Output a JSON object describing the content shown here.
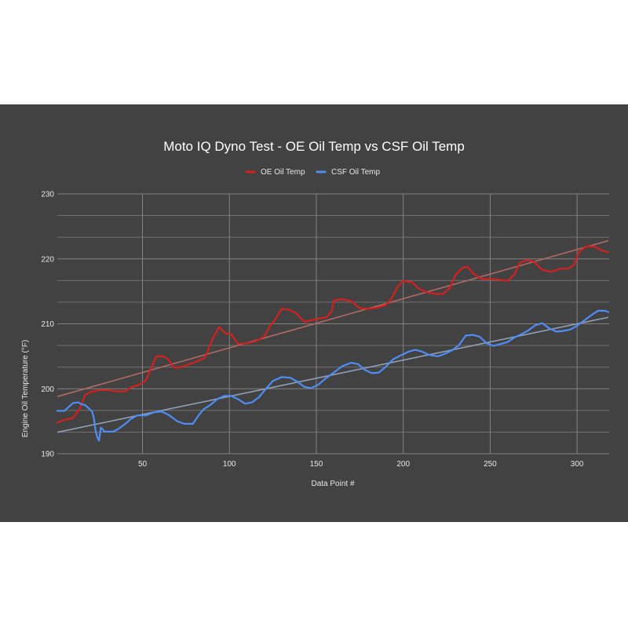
{
  "colors": {
    "panel_background": "#424242",
    "page_background": "#ffffff",
    "oe_series": "#d61f1f",
    "csf_series": "#4e8df5",
    "oe_trendline": "#b06a66",
    "csf_trendline": "#8f9fb8",
    "gridline": "#8a8a8a",
    "text": "#ffffff"
  },
  "chart_data": {
    "type": "line",
    "title": "Moto IQ Dyno Test - OE Oil Temp vs CSF Oil Temp",
    "xlabel": "Data Point #",
    "ylabel": "Engine Oil Temperature (°F)",
    "xlim": [
      1,
      318
    ],
    "ylim": [
      190,
      230
    ],
    "x_ticks": [
      50,
      100,
      150,
      200,
      250,
      300
    ],
    "y_ticks": [
      190,
      200,
      210,
      220,
      230
    ],
    "grid": true,
    "legend_position": "top",
    "series": [
      {
        "name": "OE Oil Temp",
        "color": "#d61f1f",
        "points": [
          [
            1,
            194.8
          ],
          [
            5,
            195.2
          ],
          [
            10,
            195.5
          ],
          [
            14,
            197.0
          ],
          [
            17,
            199.0
          ],
          [
            20,
            199.5
          ],
          [
            25,
            199.8
          ],
          [
            30,
            199.8
          ],
          [
            35,
            199.6
          ],
          [
            40,
            199.6
          ],
          [
            44,
            200.3
          ],
          [
            48,
            200.6
          ],
          [
            52,
            201.3
          ],
          [
            55,
            203.2
          ],
          [
            58,
            205.0
          ],
          [
            62,
            205.0
          ],
          [
            65,
            204.5
          ],
          [
            68,
            203.3
          ],
          [
            72,
            203.3
          ],
          [
            77,
            203.8
          ],
          [
            82,
            204.3
          ],
          [
            86,
            204.8
          ],
          [
            90,
            207.5
          ],
          [
            94,
            209.5
          ],
          [
            98,
            208.5
          ],
          [
            101,
            208.4
          ],
          [
            105,
            206.9
          ],
          [
            110,
            207.0
          ],
          [
            115,
            207.3
          ],
          [
            120,
            208.0
          ],
          [
            123,
            209.5
          ],
          [
            127,
            210.9
          ],
          [
            130,
            212.3
          ],
          [
            134,
            212.2
          ],
          [
            138,
            211.7
          ],
          [
            143,
            210.3
          ],
          [
            148,
            210.6
          ],
          [
            153,
            210.9
          ],
          [
            156,
            211.0
          ],
          [
            159,
            212.0
          ],
          [
            160,
            213.6
          ],
          [
            165,
            213.8
          ],
          [
            170,
            213.5
          ],
          [
            175,
            212.4
          ],
          [
            180,
            212.3
          ],
          [
            185,
            212.5
          ],
          [
            190,
            212.9
          ],
          [
            193,
            213.8
          ],
          [
            197,
            215.8
          ],
          [
            200,
            216.6
          ],
          [
            205,
            216.4
          ],
          [
            209,
            215.4
          ],
          [
            214,
            214.8
          ],
          [
            219,
            214.6
          ],
          [
            223,
            214.6
          ],
          [
            227,
            215.6
          ],
          [
            230,
            217.5
          ],
          [
            234,
            218.6
          ],
          [
            237,
            218.8
          ],
          [
            240,
            217.8
          ],
          [
            245,
            216.9
          ],
          [
            250,
            216.9
          ],
          [
            255,
            216.8
          ],
          [
            260,
            216.6
          ],
          [
            264,
            217.6
          ],
          [
            267,
            219.4
          ],
          [
            271,
            219.8
          ],
          [
            275,
            219.6
          ],
          [
            280,
            218.3
          ],
          [
            285,
            218.0
          ],
          [
            290,
            218.5
          ],
          [
            295,
            218.5
          ],
          [
            298,
            219.0
          ],
          [
            301,
            221.0
          ],
          [
            305,
            221.9
          ],
          [
            310,
            221.9
          ],
          [
            314,
            221.3
          ],
          [
            318,
            221.0
          ]
        ]
      },
      {
        "name": "CSF Oil Temp",
        "color": "#4e8df5",
        "points": [
          [
            1,
            196.6
          ],
          [
            5,
            196.6
          ],
          [
            8,
            197.3
          ],
          [
            10,
            197.8
          ],
          [
            13,
            197.9
          ],
          [
            15,
            197.6
          ],
          [
            17,
            197.5
          ],
          [
            19,
            197.0
          ],
          [
            21,
            196.5
          ],
          [
            22,
            195.5
          ],
          [
            23,
            193.6
          ],
          [
            24,
            192.5
          ],
          [
            25,
            192.0
          ],
          [
            26,
            194.0
          ],
          [
            27,
            193.8
          ],
          [
            28,
            193.4
          ],
          [
            30,
            193.4
          ],
          [
            33,
            193.4
          ],
          [
            36,
            193.8
          ],
          [
            39,
            194.4
          ],
          [
            41,
            194.8
          ],
          [
            43,
            195.3
          ],
          [
            47,
            195.9
          ],
          [
            52,
            195.9
          ],
          [
            57,
            196.4
          ],
          [
            61,
            196.5
          ],
          [
            65,
            196.0
          ],
          [
            70,
            195.0
          ],
          [
            74,
            194.6
          ],
          [
            79,
            194.6
          ],
          [
            82,
            195.8
          ],
          [
            85,
            196.8
          ],
          [
            89,
            197.5
          ],
          [
            93,
            198.4
          ],
          [
            97,
            198.9
          ],
          [
            101,
            198.9
          ],
          [
            105,
            198.4
          ],
          [
            109,
            197.7
          ],
          [
            113,
            197.9
          ],
          [
            117,
            198.7
          ],
          [
            121,
            200.0
          ],
          [
            125,
            201.2
          ],
          [
            130,
            201.8
          ],
          [
            135,
            201.7
          ],
          [
            139,
            201.1
          ],
          [
            143,
            200.3
          ],
          [
            147,
            200.1
          ],
          [
            151,
            200.6
          ],
          [
            155,
            201.5
          ],
          [
            160,
            202.5
          ],
          [
            165,
            203.5
          ],
          [
            170,
            204.0
          ],
          [
            174,
            203.8
          ],
          [
            178,
            202.9
          ],
          [
            182,
            202.4
          ],
          [
            186,
            202.5
          ],
          [
            190,
            203.4
          ],
          [
            194,
            204.5
          ],
          [
            199,
            205.2
          ],
          [
            203,
            205.7
          ],
          [
            207,
            206.0
          ],
          [
            211,
            205.7
          ],
          [
            215,
            205.2
          ],
          [
            220,
            205.0
          ],
          [
            224,
            205.4
          ],
          [
            228,
            205.9
          ],
          [
            232,
            206.7
          ],
          [
            236,
            208.2
          ],
          [
            240,
            208.3
          ],
          [
            244,
            208.0
          ],
          [
            248,
            207.0
          ],
          [
            252,
            206.6
          ],
          [
            256,
            206.9
          ],
          [
            260,
            207.2
          ],
          [
            264,
            207.9
          ],
          [
            268,
            208.4
          ],
          [
            272,
            209.0
          ],
          [
            276,
            209.8
          ],
          [
            280,
            210.1
          ],
          [
            284,
            209.3
          ],
          [
            288,
            208.8
          ],
          [
            292,
            208.9
          ],
          [
            296,
            209.1
          ],
          [
            300,
            209.7
          ],
          [
            304,
            210.5
          ],
          [
            308,
            211.3
          ],
          [
            312,
            212.0
          ],
          [
            316,
            212.0
          ],
          [
            318,
            211.8
          ]
        ]
      }
    ],
    "trendlines": [
      {
        "series": "OE Oil Temp",
        "color": "#b06a66",
        "from": [
          1,
          198.8
        ],
        "to": [
          318,
          222.8
        ]
      },
      {
        "series": "CSF Oil Temp",
        "color": "#8f9fb8",
        "from": [
          1,
          193.3
        ],
        "to": [
          318,
          211.0
        ]
      }
    ]
  }
}
